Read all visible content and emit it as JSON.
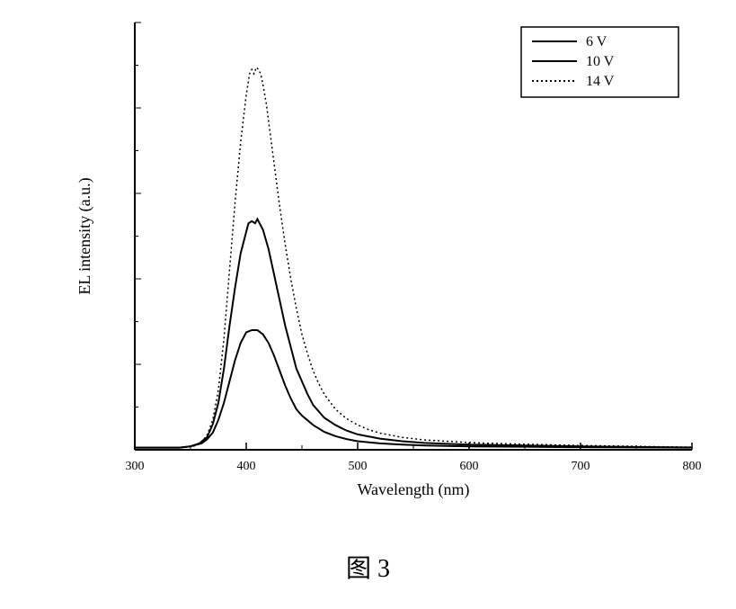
{
  "chart": {
    "type": "line",
    "xlabel": "Wavelength (nm)",
    "ylabel": "EL intensity (a.u.)",
    "label_fontsize": 18,
    "tick_fontsize": 14,
    "xlim": [
      300,
      800
    ],
    "ylim": [
      0,
      100
    ],
    "xtick_step": 100,
    "xticks": [
      300,
      400,
      500,
      600,
      700,
      800
    ],
    "background_color": "#ffffff",
    "axis_color": "#000000",
    "line_width": 2,
    "legend": {
      "position": "top-right",
      "border_color": "#000000",
      "items": [
        {
          "label": "6 V",
          "style": "solid",
          "color": "#000000"
        },
        {
          "label": "10 V",
          "style": "solid",
          "color": "#000000"
        },
        {
          "label": "14 V",
          "style": "dotted",
          "color": "#000000"
        }
      ]
    },
    "series": [
      {
        "name": "6 V",
        "color": "#000000",
        "dash": "none",
        "width": 2,
        "data": [
          [
            300,
            0.5
          ],
          [
            320,
            0.5
          ],
          [
            340,
            0.5
          ],
          [
            350,
            0.8
          ],
          [
            360,
            1.5
          ],
          [
            365,
            2.5
          ],
          [
            370,
            4
          ],
          [
            375,
            7
          ],
          [
            380,
            11
          ],
          [
            385,
            16
          ],
          [
            390,
            21
          ],
          [
            395,
            25
          ],
          [
            400,
            27.5
          ],
          [
            405,
            28
          ],
          [
            410,
            28
          ],
          [
            415,
            27
          ],
          [
            420,
            25
          ],
          [
            425,
            22
          ],
          [
            430,
            18.5
          ],
          [
            435,
            15
          ],
          [
            440,
            12
          ],
          [
            445,
            9.5
          ],
          [
            450,
            8
          ],
          [
            460,
            5.8
          ],
          [
            470,
            4.2
          ],
          [
            480,
            3.2
          ],
          [
            490,
            2.5
          ],
          [
            500,
            2.0
          ],
          [
            520,
            1.5
          ],
          [
            540,
            1.2
          ],
          [
            560,
            1.0
          ],
          [
            580,
            0.9
          ],
          [
            600,
            0.8
          ],
          [
            650,
            0.7
          ],
          [
            700,
            0.6
          ],
          [
            750,
            0.55
          ],
          [
            800,
            0.5
          ]
        ]
      },
      {
        "name": "10 V",
        "color": "#000000",
        "dash": "none",
        "width": 2,
        "data": [
          [
            300,
            0.5
          ],
          [
            320,
            0.5
          ],
          [
            340,
            0.5
          ],
          [
            350,
            0.8
          ],
          [
            358,
            1.5
          ],
          [
            365,
            3
          ],
          [
            370,
            6
          ],
          [
            375,
            11
          ],
          [
            380,
            19
          ],
          [
            385,
            29
          ],
          [
            390,
            38
          ],
          [
            395,
            46
          ],
          [
            400,
            51
          ],
          [
            402,
            53
          ],
          [
            405,
            53.5
          ],
          [
            408,
            53
          ],
          [
            410,
            54
          ],
          [
            412,
            53
          ],
          [
            415,
            51.5
          ],
          [
            420,
            47
          ],
          [
            425,
            41
          ],
          [
            430,
            35
          ],
          [
            435,
            29
          ],
          [
            440,
            24
          ],
          [
            445,
            19
          ],
          [
            450,
            16
          ],
          [
            455,
            13
          ],
          [
            460,
            10.5
          ],
          [
            470,
            7.5
          ],
          [
            480,
            5.8
          ],
          [
            490,
            4.5
          ],
          [
            500,
            3.6
          ],
          [
            520,
            2.6
          ],
          [
            540,
            2.0
          ],
          [
            560,
            1.6
          ],
          [
            580,
            1.4
          ],
          [
            600,
            1.2
          ],
          [
            650,
            1.0
          ],
          [
            700,
            0.8
          ],
          [
            750,
            0.65
          ],
          [
            800,
            0.55
          ]
        ]
      },
      {
        "name": "14 V",
        "color": "#000000",
        "dash": "2,3",
        "width": 1.5,
        "data": [
          [
            300,
            0.5
          ],
          [
            320,
            0.5
          ],
          [
            340,
            0.5
          ],
          [
            350,
            0.7
          ],
          [
            355,
            1.0
          ],
          [
            360,
            1.8
          ],
          [
            365,
            3.5
          ],
          [
            370,
            7
          ],
          [
            375,
            14
          ],
          [
            380,
            26
          ],
          [
            385,
            42
          ],
          [
            390,
            58
          ],
          [
            395,
            72
          ],
          [
            400,
            83
          ],
          [
            403,
            88
          ],
          [
            405,
            89
          ],
          [
            407,
            88
          ],
          [
            409,
            89.5
          ],
          [
            411,
            89
          ],
          [
            413,
            88
          ],
          [
            415,
            85.5
          ],
          [
            418,
            81
          ],
          [
            421,
            75
          ],
          [
            425,
            67
          ],
          [
            430,
            57
          ],
          [
            435,
            48
          ],
          [
            440,
            40
          ],
          [
            445,
            33
          ],
          [
            450,
            27
          ],
          [
            455,
            22.5
          ],
          [
            460,
            18.5
          ],
          [
            465,
            15.5
          ],
          [
            470,
            13
          ],
          [
            480,
            9.5
          ],
          [
            490,
            7.3
          ],
          [
            500,
            5.8
          ],
          [
            510,
            4.7
          ],
          [
            520,
            3.9
          ],
          [
            540,
            2.9
          ],
          [
            560,
            2.3
          ],
          [
            580,
            2.0
          ],
          [
            600,
            1.7
          ],
          [
            620,
            1.5
          ],
          [
            650,
            1.3
          ],
          [
            700,
            1.0
          ],
          [
            750,
            0.8
          ],
          [
            800,
            0.6
          ]
        ]
      }
    ]
  },
  "caption": "图 3"
}
